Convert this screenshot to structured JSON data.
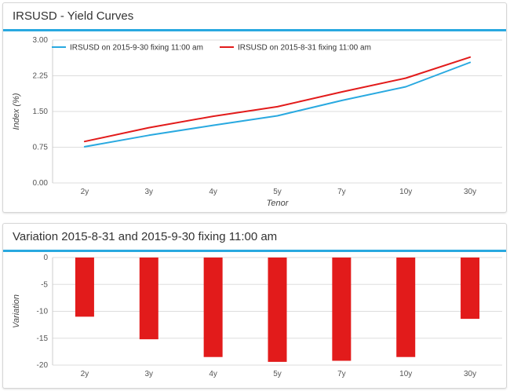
{
  "panels": {
    "top_title": "IRSUSD - Yield Curves",
    "bottom_title": "Variation 2015-8-31 and 2015-9-30 fixing 11:00 am"
  },
  "colors": {
    "accent": "#29a9e0",
    "series_a": "#29a9e0",
    "series_b": "#e21b1b",
    "bar": "#e21b1b",
    "grid": "#dddddd"
  },
  "chart_data": [
    {
      "type": "line",
      "title": "IRSUSD - Yield Curves",
      "xlabel": "Tenor",
      "ylabel": "Index (%)",
      "categories": [
        "2y",
        "3y",
        "4y",
        "5y",
        "7y",
        "10y",
        "30y"
      ],
      "yticks": [
        "3.00",
        "2.25",
        "1.50",
        "0.75",
        "0.00"
      ],
      "ylim": [
        0,
        3
      ],
      "grid": true,
      "legend": "top-left",
      "series": [
        {
          "name": "IRSUSD on 2015-9-30 fixing 11:00 am",
          "color": "#29a9e0",
          "values": [
            0.76,
            1.0,
            1.21,
            1.41,
            1.73,
            2.02,
            2.53
          ]
        },
        {
          "name": "IRSUSD on 2015-8-31 fixing 11:00 am",
          "color": "#e21b1b",
          "values": [
            0.87,
            1.16,
            1.4,
            1.6,
            1.91,
            2.2,
            2.64
          ]
        }
      ]
    },
    {
      "type": "bar",
      "title": "Variation 2015-8-31 and 2015-9-30 fixing 11:00 am",
      "xlabel": "",
      "ylabel": "Variation",
      "categories": [
        "2y",
        "3y",
        "4y",
        "5y",
        "7y",
        "10y",
        "30y"
      ],
      "yticks": [
        "0",
        "-5",
        "-10",
        "-15",
        "-20"
      ],
      "ylim": [
        -20,
        0
      ],
      "grid": true,
      "values": [
        -11.0,
        -15.2,
        -18.5,
        -19.4,
        -19.2,
        -18.5,
        -11.4
      ]
    }
  ]
}
